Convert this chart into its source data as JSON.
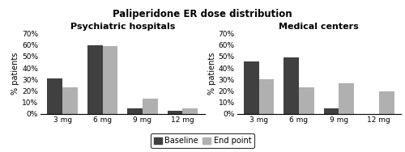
{
  "title": "Paliperidone ER dose distribution",
  "subtitle_left": "Psychiatric hospitals",
  "subtitle_right": "Medical centers",
  "ylabel": "% patients",
  "doses": [
    "3 mg",
    "6 mg",
    "9 mg",
    "12 mg"
  ],
  "psych_baseline": [
    31,
    60,
    5,
    3
  ],
  "psych_endpoint": [
    23,
    59,
    13,
    5
  ],
  "med_baseline": [
    46,
    49,
    5,
    0
  ],
  "med_endpoint": [
    30,
    23,
    27,
    20
  ],
  "ylim": [
    0,
    70
  ],
  "yticks": [
    0,
    10,
    20,
    30,
    40,
    50,
    60,
    70
  ],
  "color_baseline": "#404040",
  "color_endpoint": "#b0b0b0",
  "legend_labels": [
    "Baseline",
    "End point"
  ],
  "bar_width": 0.38,
  "title_fontsize": 8.5,
  "subtitle_fontsize": 8,
  "axis_fontsize": 7,
  "tick_fontsize": 6.5,
  "legend_fontsize": 7
}
